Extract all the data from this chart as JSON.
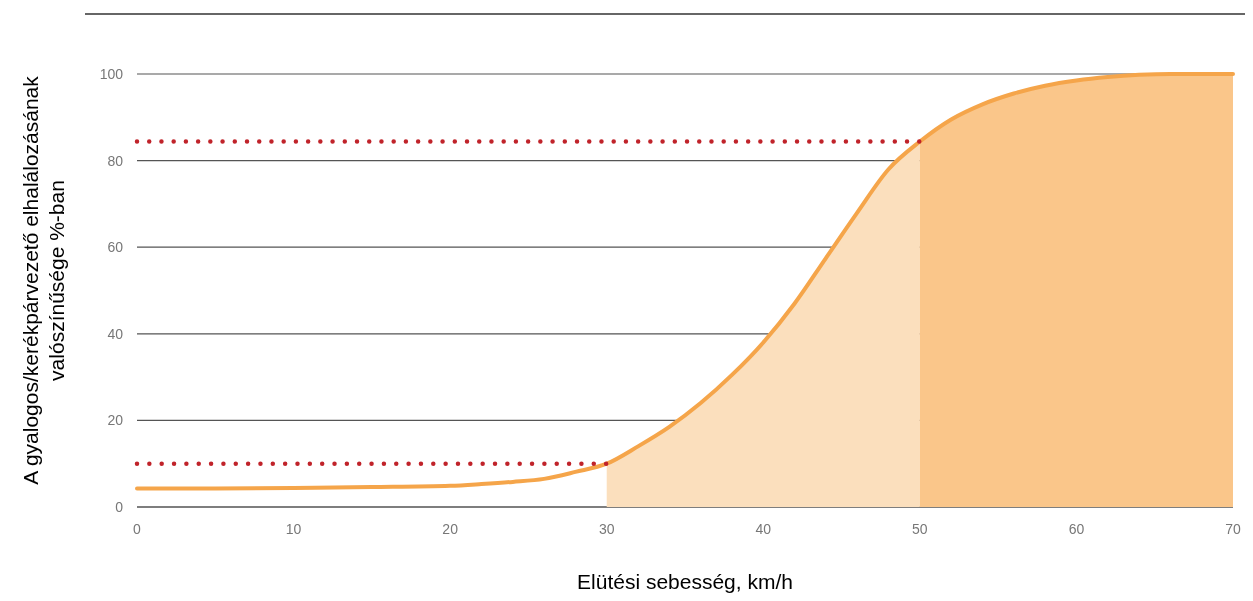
{
  "chart_data": {
    "type": "line",
    "xlabel": "Elütési sebesség, km/h",
    "ylabel": "A gyalogos/kerékpárvezető elhalálozásának valószínűsége %-ban",
    "xlim": [
      0,
      70
    ],
    "ylim": [
      0,
      100
    ],
    "xticks": [
      0,
      10,
      20,
      30,
      40,
      50,
      60,
      70
    ],
    "yticks": [
      0,
      20,
      40,
      60,
      80,
      100
    ],
    "grid": "y",
    "series": [
      {
        "type": "area",
        "color": "#fbdfbd",
        "x": [
          30,
          32,
          34,
          36,
          38,
          40,
          42,
          44,
          46,
          48,
          50
        ],
        "values": [
          10,
          14,
          18.5,
          24,
          30.5,
          38,
          47,
          57.5,
          68,
          78,
          84.4
        ]
      },
      {
        "type": "area",
        "color": "#fac68a",
        "x": [
          50,
          52,
          54,
          56,
          58,
          60,
          62,
          64,
          66,
          68,
          70
        ],
        "values": [
          84.4,
          89.5,
          93,
          95.5,
          97.3,
          98.5,
          99.3,
          99.8,
          100,
          100,
          100
        ]
      },
      {
        "type": "line",
        "color": "#f5a54a",
        "line_style": "solid",
        "x": [
          0,
          5,
          10,
          15,
          20,
          22,
          24,
          26,
          28,
          30,
          32,
          34,
          36,
          38,
          40,
          42,
          44,
          46,
          48,
          50,
          52,
          54,
          56,
          58,
          60,
          62,
          64,
          66,
          68,
          70
        ],
        "values": [
          4.3,
          4.3,
          4.4,
          4.6,
          4.9,
          5.3,
          5.8,
          6.5,
          8.1,
          10,
          14,
          18.5,
          24,
          30.5,
          38,
          47,
          57.5,
          68,
          78,
          84.4,
          89.5,
          93,
          95.5,
          97.3,
          98.5,
          99.3,
          99.8,
          100,
          100,
          100
        ]
      },
      {
        "type": "line",
        "color": "#c0232a",
        "line_style": "dotted",
        "x": [
          0,
          30
        ],
        "values": [
          10,
          10
        ]
      },
      {
        "type": "line",
        "color": "#c0232a",
        "line_style": "dotted",
        "x": [
          0,
          50
        ],
        "values": [
          84.4,
          84.4
        ]
      }
    ]
  }
}
